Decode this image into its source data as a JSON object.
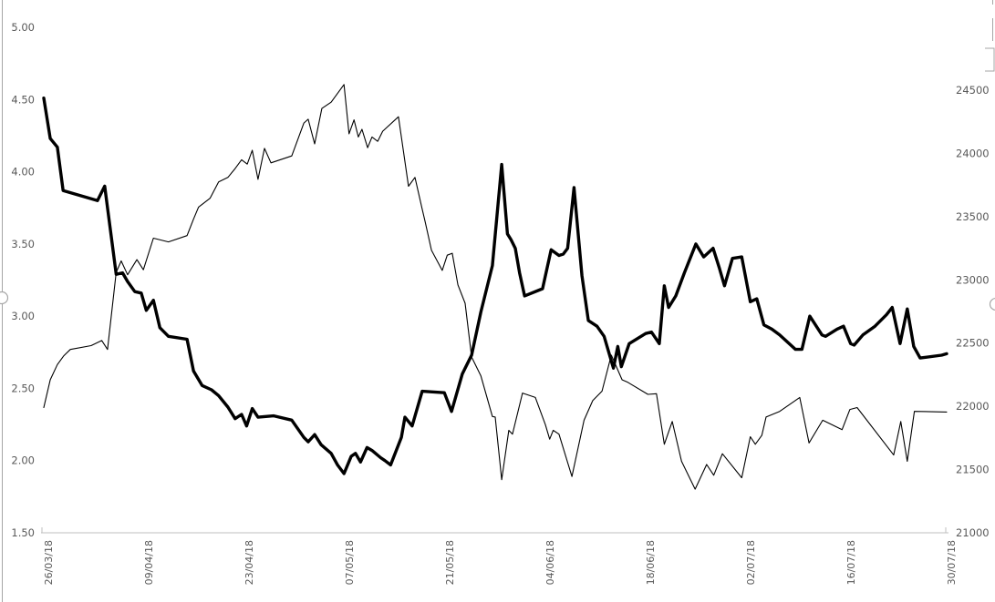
{
  "decorations": {
    "border_color": "#A6A6A6",
    "axis_color": "#BFBFBF",
    "label_color": "#595959",
    "background": "#FFFFFF"
  },
  "chart_data": {
    "type": "line",
    "grid": false,
    "legend": "none",
    "x_axis": {
      "tick_labels": [
        "26/03/18",
        "09/04/18",
        "23/04/18",
        "07/05/18",
        "21/05/18",
        "04/06/18",
        "18/06/18",
        "02/07/18",
        "16/07/18",
        "30/07/18"
      ],
      "tick_positions_days": [
        0,
        14,
        28,
        42,
        56,
        70,
        84,
        98,
        112,
        126
      ],
      "range_days": [
        0,
        126
      ],
      "label_rotation_deg": 90
    },
    "y_axis_left": {
      "tick_labels": [
        "5.00",
        "4.50",
        "4.00",
        "3.50",
        "3.00",
        "2.50",
        "2.00",
        "1.50"
      ],
      "tick_values": [
        5.0,
        4.5,
        4.0,
        3.5,
        3.0,
        2.5,
        2.0,
        1.5
      ],
      "range": [
        1.5,
        5.0
      ]
    },
    "y_axis_right": {
      "tick_labels": [
        "24500",
        "24000",
        "23500",
        "23000",
        "22500",
        "22000",
        "21500",
        "21000"
      ],
      "tick_values": [
        24500,
        24000,
        23500,
        23000,
        22500,
        22000,
        21500,
        21000
      ],
      "range": [
        21000,
        24500
      ]
    },
    "series": [
      {
        "name": "thick-series-left-axis",
        "axis": "left",
        "color": "#000000",
        "line_width": 3.4,
        "points": [
          [
            0,
            4.51
          ],
          [
            0.9,
            4.23
          ],
          [
            1.9,
            4.17
          ],
          [
            2.7,
            3.87
          ],
          [
            7.5,
            3.8
          ],
          [
            8.5,
            3.9
          ],
          [
            10.1,
            3.29
          ],
          [
            11,
            3.3
          ],
          [
            11.7,
            3.24
          ],
          [
            12.7,
            3.17
          ],
          [
            13.6,
            3.16
          ],
          [
            14.3,
            3.04
          ],
          [
            15.3,
            3.11
          ],
          [
            16.2,
            2.92
          ],
          [
            17.4,
            2.86
          ],
          [
            20,
            2.84
          ],
          [
            20.9,
            2.62
          ],
          [
            22.1,
            2.52
          ],
          [
            23.4,
            2.49
          ],
          [
            24.4,
            2.45
          ],
          [
            25.7,
            2.37
          ],
          [
            26.7,
            2.29
          ],
          [
            27.6,
            2.32
          ],
          [
            28.3,
            2.24
          ],
          [
            29.1,
            2.36
          ],
          [
            29.9,
            2.3
          ],
          [
            32.1,
            2.31
          ],
          [
            34.6,
            2.28
          ],
          [
            36.3,
            2.16
          ],
          [
            36.9,
            2.13
          ],
          [
            37.8,
            2.18
          ],
          [
            38.7,
            2.11
          ],
          [
            40.1,
            2.05
          ],
          [
            41,
            1.97
          ],
          [
            41.9,
            1.91
          ],
          [
            42.9,
            2.03
          ],
          [
            43.5,
            2.05
          ],
          [
            44.2,
            1.99
          ],
          [
            45.1,
            2.09
          ],
          [
            45.8,
            2.07
          ],
          [
            47,
            2.02
          ],
          [
            47.6,
            2.0
          ],
          [
            48.4,
            1.97
          ],
          [
            49.9,
            2.16
          ],
          [
            50.4,
            2.3
          ],
          [
            51.4,
            2.24
          ],
          [
            52.8,
            2.48
          ],
          [
            55.9,
            2.47
          ],
          [
            56.9,
            2.34
          ],
          [
            58.4,
            2.6
          ],
          [
            59.7,
            2.73
          ],
          [
            61,
            3.03
          ],
          [
            62.6,
            3.35
          ],
          [
            63.9,
            4.05
          ],
          [
            64.7,
            3.57
          ],
          [
            65.2,
            3.53
          ],
          [
            65.8,
            3.47
          ],
          [
            66.4,
            3.3
          ],
          [
            67.1,
            3.14
          ],
          [
            69.6,
            3.19
          ],
          [
            70.8,
            3.46
          ],
          [
            71.9,
            3.42
          ],
          [
            72.5,
            3.43
          ],
          [
            73.1,
            3.47
          ],
          [
            74,
            3.89
          ],
          [
            75.1,
            3.28
          ],
          [
            76,
            2.97
          ],
          [
            77.2,
            2.93
          ],
          [
            78.2,
            2.86
          ],
          [
            79.5,
            2.64
          ],
          [
            80.1,
            2.79
          ],
          [
            80.6,
            2.65
          ],
          [
            81.7,
            2.81
          ],
          [
            84,
            2.88
          ],
          [
            84.8,
            2.89
          ],
          [
            85.9,
            2.81
          ],
          [
            86.6,
            3.21
          ],
          [
            87.2,
            3.06
          ],
          [
            88.2,
            3.14
          ],
          [
            89.4,
            3.3
          ],
          [
            91,
            3.5
          ],
          [
            92.1,
            3.41
          ],
          [
            93.4,
            3.47
          ],
          [
            94.3,
            3.33
          ],
          [
            95,
            3.21
          ],
          [
            96.1,
            3.4
          ],
          [
            97.4,
            3.41
          ],
          [
            98.6,
            3.1
          ],
          [
            99.5,
            3.12
          ],
          [
            100.5,
            2.94
          ],
          [
            101.6,
            2.91
          ],
          [
            102.7,
            2.87
          ],
          [
            104.9,
            2.77
          ],
          [
            105.8,
            2.77
          ],
          [
            106.9,
            3.0
          ],
          [
            108.6,
            2.87
          ],
          [
            109.1,
            2.86
          ],
          [
            110.7,
            2.91
          ],
          [
            111.6,
            2.93
          ],
          [
            112.6,
            2.81
          ],
          [
            113.1,
            2.8
          ],
          [
            114.3,
            2.87
          ],
          [
            116,
            2.93
          ],
          [
            117.6,
            3.01
          ],
          [
            118.4,
            3.06
          ],
          [
            119.5,
            2.81
          ],
          [
            120.5,
            3.05
          ],
          [
            121.4,
            2.79
          ],
          [
            122.3,
            2.71
          ],
          [
            125.3,
            2.73
          ],
          [
            126,
            2.74
          ]
        ]
      },
      {
        "name": "thin-series-right-axis",
        "axis": "right",
        "color": "#000000",
        "line_width": 1.1,
        "points": [
          [
            0,
            21990
          ],
          [
            0.9,
            22210
          ],
          [
            1.9,
            22330
          ],
          [
            2.8,
            22400
          ],
          [
            3.7,
            22450
          ],
          [
            6.6,
            22480
          ],
          [
            8.1,
            22520
          ],
          [
            8.9,
            22450
          ],
          [
            10.1,
            23060
          ],
          [
            10.8,
            23150
          ],
          [
            11.7,
            23040
          ],
          [
            13,
            23160
          ],
          [
            13.9,
            23080
          ],
          [
            15.3,
            23330
          ],
          [
            17.4,
            23300
          ],
          [
            20,
            23350
          ],
          [
            20.9,
            23480
          ],
          [
            21.6,
            23575
          ],
          [
            23.2,
            23645
          ],
          [
            24.4,
            23775
          ],
          [
            25.7,
            23810
          ],
          [
            26.7,
            23880
          ],
          [
            27.6,
            23950
          ],
          [
            28.4,
            23915
          ],
          [
            29.1,
            24025
          ],
          [
            29.9,
            23795
          ],
          [
            30.8,
            24040
          ],
          [
            31.7,
            23925
          ],
          [
            34.6,
            23980
          ],
          [
            36.3,
            24240
          ],
          [
            36.9,
            24270
          ],
          [
            37.8,
            24075
          ],
          [
            38.8,
            24355
          ],
          [
            40.1,
            24405
          ],
          [
            41.9,
            24545
          ],
          [
            42.6,
            24155
          ],
          [
            43.3,
            24265
          ],
          [
            43.9,
            24130
          ],
          [
            44.4,
            24190
          ],
          [
            45.2,
            24045
          ],
          [
            45.8,
            24130
          ],
          [
            46.6,
            24095
          ],
          [
            47.3,
            24175
          ],
          [
            49.5,
            24290
          ],
          [
            50.9,
            23740
          ],
          [
            51.8,
            23810
          ],
          [
            52.8,
            23560
          ],
          [
            53.2,
            23465
          ],
          [
            54.1,
            23235
          ],
          [
            55.6,
            23075
          ],
          [
            56.3,
            23195
          ],
          [
            57,
            23210
          ],
          [
            57.8,
            22960
          ],
          [
            58.8,
            22815
          ],
          [
            59.7,
            22390
          ],
          [
            61,
            22240
          ],
          [
            62.6,
            21920
          ],
          [
            63,
            21915
          ],
          [
            63.9,
            21420
          ],
          [
            64.9,
            21810
          ],
          [
            65.4,
            21780
          ],
          [
            66.8,
            22105
          ],
          [
            68.6,
            22070
          ],
          [
            70,
            21855
          ],
          [
            70.6,
            21740
          ],
          [
            71.1,
            21810
          ],
          [
            71.9,
            21780
          ],
          [
            73.7,
            21445
          ],
          [
            75.4,
            21890
          ],
          [
            76.6,
            22045
          ],
          [
            77.9,
            22120
          ],
          [
            79.2,
            22405
          ],
          [
            80.7,
            22210
          ],
          [
            81.5,
            22190
          ],
          [
            84.3,
            22095
          ],
          [
            85.5,
            22100
          ],
          [
            86.6,
            21700
          ],
          [
            87.7,
            21880
          ],
          [
            89,
            21565
          ],
          [
            90.9,
            21345
          ],
          [
            92.5,
            21540
          ],
          [
            93.5,
            21455
          ],
          [
            94.7,
            21625
          ],
          [
            97.4,
            21435
          ],
          [
            98.6,
            21760
          ],
          [
            99.3,
            21700
          ],
          [
            100.2,
            21770
          ],
          [
            100.8,
            21915
          ],
          [
            102.7,
            21960
          ],
          [
            105.5,
            22070
          ],
          [
            106.8,
            21710
          ],
          [
            108.7,
            21890
          ],
          [
            111.4,
            21815
          ],
          [
            112.5,
            21975
          ],
          [
            113.5,
            21990
          ],
          [
            118.6,
            21615
          ],
          [
            119.6,
            21880
          ],
          [
            120.5,
            21565
          ],
          [
            121.5,
            21960
          ],
          [
            126,
            21955
          ]
        ]
      }
    ]
  }
}
